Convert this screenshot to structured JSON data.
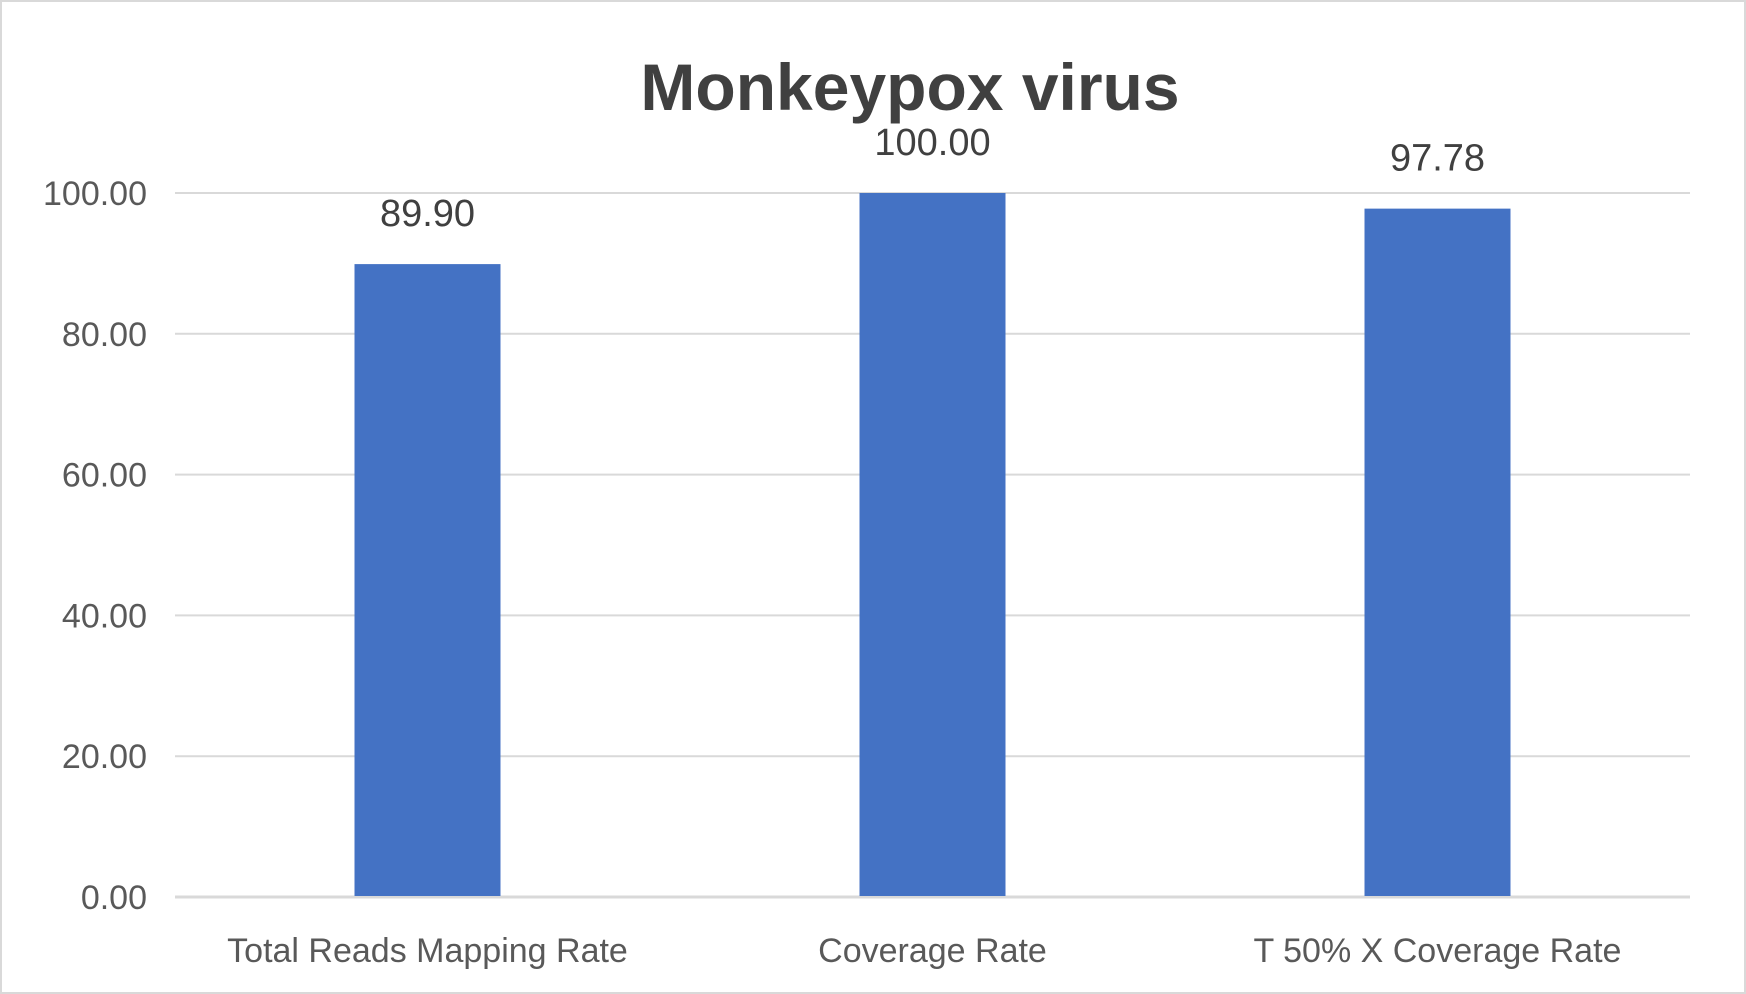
{
  "chart_data": {
    "type": "bar",
    "title": "Monkeypox virus",
    "categories": [
      "Total Reads Mapping Rate",
      "Coverage Rate",
      "T 50% X Coverage Rate"
    ],
    "values": [
      89.9,
      100.0,
      97.78
    ],
    "data_labels": [
      "89.90",
      "100.00",
      "97.78"
    ],
    "xlabel": "",
    "ylabel": "",
    "ylim": [
      0,
      100
    ],
    "yticks": [
      "0.00",
      "20.00",
      "40.00",
      "60.00",
      "80.00",
      "100.00"
    ],
    "grid": true,
    "legend": "none",
    "bar_color": "#4472C4"
  }
}
